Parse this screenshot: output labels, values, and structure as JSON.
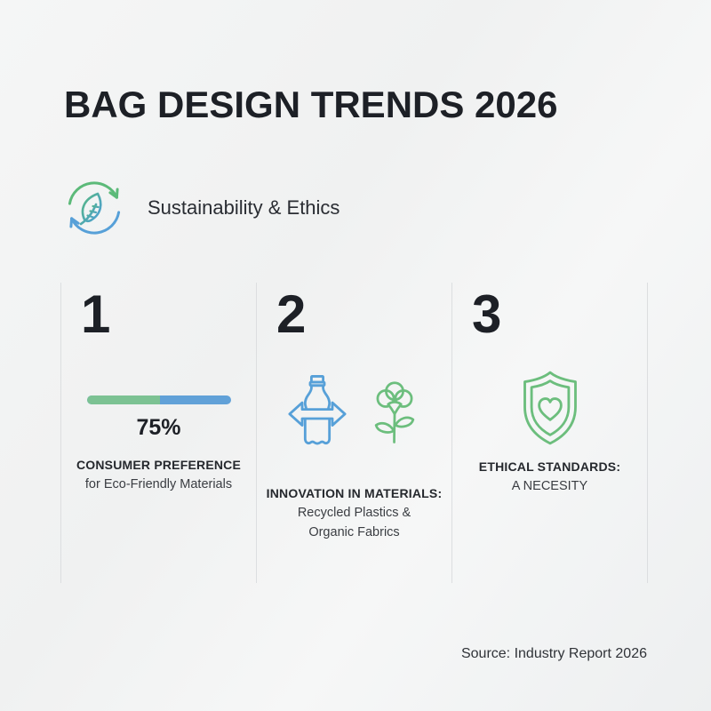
{
  "page": {
    "title": "BAG DESIGN TRENDS 2026",
    "category": {
      "label": "Sustainability & Ethics",
      "icon": "leaf-recycle-icon"
    },
    "source": "Source: Industry Report 2026"
  },
  "colors": {
    "bar_green": "#7CC293",
    "bar_blue": "#61A1D8",
    "icon_green": "#6CBE7D",
    "icon_blue": "#57A0D8",
    "text_dark": "#1D2026",
    "divider": "#DCDEE0",
    "background": "#F1F2F2"
  },
  "trends": [
    {
      "number": "1",
      "visual": {
        "type": "progress-bar",
        "label": "75%",
        "green_percent": 51
      },
      "heading": "CONSUMER PREFERENCE",
      "lines": [
        "for Eco-Friendly Materials"
      ]
    },
    {
      "number": "2",
      "visual": {
        "type": "icons",
        "icons": [
          "recycled-plastic-bottle-icon",
          "cotton-plant-icon"
        ]
      },
      "heading": "INNOVATION IN MATERIALS:",
      "lines": [
        "Recycled Plastics &",
        "Organic Fabrics"
      ]
    },
    {
      "number": "3",
      "visual": {
        "type": "icons",
        "icons": [
          "shield-heart-icon"
        ]
      },
      "heading": "ETHICAL STANDARDS:",
      "lines": [
        "A NECESITY"
      ]
    }
  ]
}
